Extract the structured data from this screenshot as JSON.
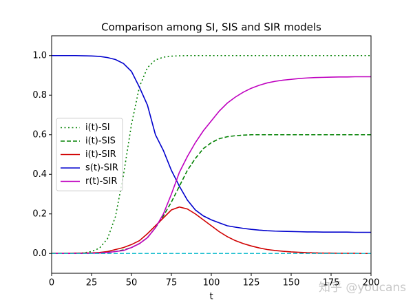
{
  "chart_data": {
    "type": "line",
    "title": "Comparison among SI, SIS and SIR models",
    "x_label": "t",
    "x": [
      0,
      5,
      10,
      15,
      20,
      25,
      30,
      35,
      40,
      45,
      50,
      55,
      60,
      65,
      70,
      75,
      80,
      85,
      90,
      95,
      100,
      105,
      110,
      115,
      120,
      125,
      130,
      135,
      140,
      145,
      150,
      155,
      160,
      165,
      170,
      175,
      180,
      185,
      190,
      195,
      200
    ],
    "series": [
      {
        "name": "i(t)-SI",
        "color": "#008000",
        "style": "dotted",
        "values": [
          0,
          0,
          0,
          0.001,
          0.003,
          0.01,
          0.027,
          0.075,
          0.187,
          0.397,
          0.652,
          0.843,
          0.939,
          0.978,
          0.992,
          0.997,
          0.999,
          1,
          1,
          1,
          1,
          1,
          1,
          1,
          1,
          1,
          1,
          1,
          1,
          1,
          1,
          1,
          1,
          1,
          1,
          1,
          1,
          1,
          1,
          1,
          1
        ]
      },
      {
        "name": "i(t)-SIS",
        "color": "#008000",
        "style": "dashed",
        "values": [
          0.001,
          0.001,
          0.001,
          0.001,
          0.002,
          0.002,
          0.003,
          0.006,
          0.01,
          0.018,
          0.03,
          0.05,
          0.08,
          0.13,
          0.19,
          0.26,
          0.34,
          0.42,
          0.48,
          0.53,
          0.56,
          0.58,
          0.59,
          0.595,
          0.598,
          0.6,
          0.6,
          0.6,
          0.6,
          0.6,
          0.6,
          0.6,
          0.6,
          0.6,
          0.6,
          0.6,
          0.6,
          0.6,
          0.6,
          0.6,
          0.6
        ]
      },
      {
        "name": "i(t)-SIR",
        "color": "#d00000",
        "style": "solid",
        "values": [
          0.001,
          0.001,
          0.001,
          0.002,
          0.002,
          0.003,
          0.005,
          0.01,
          0.02,
          0.03,
          0.045,
          0.065,
          0.1,
          0.14,
          0.18,
          0.22,
          0.235,
          0.225,
          0.2,
          0.17,
          0.14,
          0.11,
          0.085,
          0.065,
          0.05,
          0.038,
          0.028,
          0.02,
          0.015,
          0.011,
          0.008,
          0.006,
          0.004,
          0.003,
          0.002,
          0.002,
          0.001,
          0.001,
          0.001,
          0,
          0
        ]
      },
      {
        "name": "s(t)-SIR",
        "color": "#0000cd",
        "style": "solid",
        "values": [
          1,
          1,
          1,
          1,
          0.999,
          0.998,
          0.996,
          0.99,
          0.98,
          0.96,
          0.92,
          0.84,
          0.75,
          0.6,
          0.52,
          0.42,
          0.34,
          0.27,
          0.22,
          0.19,
          0.17,
          0.155,
          0.14,
          0.133,
          0.127,
          0.122,
          0.118,
          0.115,
          0.113,
          0.112,
          0.111,
          0.11,
          0.109,
          0.109,
          0.108,
          0.108,
          0.108,
          0.108,
          0.107,
          0.107,
          0.107
        ]
      },
      {
        "name": "r(t)-SIR",
        "color": "#bf00bf",
        "style": "solid",
        "values": [
          0,
          0,
          0,
          0,
          0,
          0.001,
          0.002,
          0.005,
          0.01,
          0.015,
          0.03,
          0.05,
          0.08,
          0.13,
          0.2,
          0.3,
          0.41,
          0.49,
          0.56,
          0.62,
          0.67,
          0.72,
          0.76,
          0.79,
          0.815,
          0.835,
          0.85,
          0.862,
          0.87,
          0.876,
          0.88,
          0.884,
          0.887,
          0.889,
          0.89,
          0.891,
          0.892,
          0.892,
          0.893,
          0.893,
          0.893
        ]
      },
      {
        "color": "#17becf",
        "style": "dashed",
        "values": [
          0,
          0,
          0,
          0,
          0,
          0,
          0,
          0,
          0,
          0,
          0,
          0,
          0,
          0,
          0,
          0,
          0,
          0,
          0,
          0,
          0,
          0,
          0,
          0,
          0,
          0,
          0,
          0,
          0,
          0,
          0,
          0,
          0,
          0,
          0,
          0,
          0,
          0,
          0,
          0,
          0
        ]
      }
    ],
    "xlim": [
      0,
      200
    ],
    "xticks": [
      0,
      25,
      50,
      75,
      100,
      125,
      150,
      175,
      200
    ],
    "ylim": [
      -0.1,
      1.1
    ],
    "yticks": [
      {
        "value": 0,
        "label": "0.0"
      },
      0.2,
      0.4,
      0.6,
      0.8,
      {
        "value": 1,
        "label": "1.0"
      }
    ],
    "legend": "center left",
    "grid": false,
    "watermark": "知乎 @youcans"
  }
}
